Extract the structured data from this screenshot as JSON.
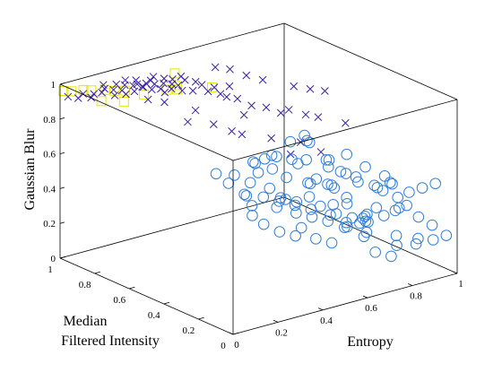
{
  "chart_data": {
    "type": "scatter",
    "projection": "3d",
    "grid": false,
    "legend": "none",
    "xlabel": "Entropy",
    "ylabel_lines": [
      "Median",
      "Filtered Intensity"
    ],
    "zlabel": "Gaussian Blur",
    "xlim": [
      0,
      1
    ],
    "ylim": [
      0,
      1
    ],
    "zlim": [
      0,
      1
    ],
    "x_ticks": [
      "0",
      "0.2",
      "0.4",
      "0.6",
      "0.8",
      "1"
    ],
    "y_ticks": [
      "0",
      "0.2",
      "0.4",
      "0.6",
      "0.8",
      "1"
    ],
    "z_ticks": [
      "0",
      "0.2",
      "0.4",
      "0.6",
      "0.8",
      "1"
    ],
    "series": [
      {
        "marker": "square",
        "color": "#e6e600",
        "points": [
          [
            0.0,
            0.98,
            0.97
          ],
          [
            0.02,
            0.96,
            0.97
          ],
          [
            0.05,
            0.93,
            0.98
          ],
          [
            0.07,
            0.91,
            0.98
          ],
          [
            0.1,
            0.87,
            0.99
          ],
          [
            0.12,
            0.84,
            0.99
          ],
          [
            0.15,
            0.82,
            0.99
          ],
          [
            0.03,
            0.8,
            0.98
          ],
          [
            0.26,
            0.72,
            1.0
          ],
          [
            0.29,
            0.7,
            1.0
          ],
          [
            0.4,
            0.64,
            1.0
          ],
          [
            0.45,
            0.92,
            0.94
          ],
          [
            0.42,
            0.88,
            0.9
          ],
          [
            0.22,
            0.8,
            0.95
          ],
          [
            0.1,
            0.76,
            0.97
          ]
        ]
      },
      {
        "marker": "x",
        "color": "#3b22a0",
        "points": [
          [
            0.02,
            0.98,
            0.93
          ],
          [
            0.05,
            0.96,
            0.92
          ],
          [
            0.08,
            0.97,
            0.93
          ],
          [
            0.1,
            0.95,
            0.91
          ],
          [
            0.12,
            0.96,
            0.92
          ],
          [
            0.14,
            0.94,
            0.93
          ],
          [
            0.16,
            0.95,
            0.94
          ],
          [
            0.17,
            0.97,
            0.95
          ],
          [
            0.19,
            0.93,
            0.9
          ],
          [
            0.2,
            0.95,
            0.92
          ],
          [
            0.22,
            0.96,
            0.94
          ],
          [
            0.23,
            0.94,
            0.91
          ],
          [
            0.24,
            0.93,
            0.89
          ],
          [
            0.25,
            0.95,
            0.93
          ],
          [
            0.26,
            0.96,
            0.95
          ],
          [
            0.27,
            0.92,
            0.9
          ],
          [
            0.28,
            0.94,
            0.92
          ],
          [
            0.29,
            0.93,
            0.93
          ],
          [
            0.3,
            0.95,
            0.94
          ],
          [
            0.31,
            0.92,
            0.91
          ],
          [
            0.32,
            0.94,
            0.9
          ],
          [
            0.33,
            0.93,
            0.92
          ],
          [
            0.34,
            0.91,
            0.89
          ],
          [
            0.35,
            0.93,
            0.93
          ],
          [
            0.36,
            0.92,
            0.91
          ],
          [
            0.37,
            0.94,
            0.94
          ],
          [
            0.38,
            0.91,
            0.88
          ],
          [
            0.39,
            0.9,
            0.86
          ],
          [
            0.4,
            0.92,
            0.9
          ],
          [
            0.41,
            0.93,
            0.92
          ],
          [
            0.42,
            0.9,
            0.87
          ],
          [
            0.43,
            0.91,
            0.89
          ],
          [
            0.44,
            0.92,
            0.91
          ],
          [
            0.45,
            0.9,
            0.88
          ],
          [
            0.46,
            0.89,
            0.85
          ],
          [
            0.47,
            0.91,
            0.92
          ],
          [
            0.48,
            0.9,
            0.9
          ],
          [
            0.5,
            0.88,
            0.84
          ],
          [
            0.52,
            0.89,
            0.88
          ],
          [
            0.54,
            0.88,
            0.86
          ],
          [
            0.56,
            0.87,
            0.82
          ],
          [
            0.58,
            0.86,
            0.84
          ],
          [
            0.6,
            0.85,
            0.8
          ],
          [
            0.62,
            0.84,
            0.78
          ],
          [
            0.64,
            0.85,
            0.83
          ],
          [
            0.66,
            0.83,
            0.76
          ],
          [
            0.7,
            0.8,
            0.72
          ],
          [
            0.75,
            0.78,
            0.7
          ],
          [
            0.8,
            0.76,
            0.66
          ],
          [
            0.82,
            0.74,
            0.68
          ],
          [
            0.88,
            0.72,
            0.64
          ],
          [
            0.92,
            0.7,
            0.62
          ],
          [
            0.6,
            0.88,
            0.94
          ],
          [
            0.65,
            0.86,
            0.92
          ],
          [
            0.7,
            0.83,
            0.88
          ],
          [
            0.75,
            0.8,
            0.85
          ],
          [
            0.85,
            0.75,
            0.8
          ],
          [
            0.9,
            0.72,
            0.78
          ],
          [
            0.95,
            0.7,
            0.76
          ],
          [
            0.78,
            0.62,
            0.56
          ],
          [
            0.68,
            0.66,
            0.6
          ],
          [
            0.55,
            0.72,
            0.66
          ],
          [
            0.5,
            0.76,
            0.7
          ],
          [
            0.45,
            0.8,
            0.78
          ],
          [
            0.35,
            0.85,
            0.84
          ],
          [
            0.3,
            0.88,
            0.86
          ],
          [
            0.72,
            0.6,
            0.52
          ],
          [
            0.84,
            0.58,
            0.5
          ],
          [
            0.98,
            0.62,
            0.6
          ],
          [
            0.4,
            0.78,
            0.74
          ],
          [
            0.58,
            0.7,
            0.64
          ],
          [
            0.62,
            0.74,
            0.72
          ]
        ]
      },
      {
        "marker": "circle",
        "color": "#2f7fd8",
        "points": [
          [
            0.55,
            0.3,
            0.82
          ],
          [
            0.6,
            0.35,
            0.75
          ],
          [
            0.65,
            0.4,
            0.7
          ],
          [
            0.7,
            0.25,
            0.68
          ],
          [
            0.52,
            0.45,
            0.65
          ],
          [
            0.58,
            0.5,
            0.6
          ],
          [
            0.62,
            0.38,
            0.62
          ],
          [
            0.68,
            0.33,
            0.58
          ],
          [
            0.72,
            0.28,
            0.55
          ],
          [
            0.75,
            0.35,
            0.52
          ],
          [
            0.78,
            0.3,
            0.5
          ],
          [
            0.8,
            0.22,
            0.48
          ],
          [
            0.74,
            0.42,
            0.56
          ],
          [
            0.66,
            0.48,
            0.54
          ],
          [
            0.6,
            0.55,
            0.5
          ],
          [
            0.56,
            0.58,
            0.48
          ],
          [
            0.64,
            0.52,
            0.45
          ],
          [
            0.7,
            0.46,
            0.42
          ],
          [
            0.76,
            0.4,
            0.4
          ],
          [
            0.82,
            0.34,
            0.44
          ],
          [
            0.86,
            0.28,
            0.42
          ],
          [
            0.88,
            0.22,
            0.46
          ],
          [
            0.84,
            0.18,
            0.5
          ],
          [
            0.9,
            0.3,
            0.38
          ],
          [
            0.92,
            0.24,
            0.36
          ],
          [
            0.94,
            0.2,
            0.4
          ],
          [
            0.96,
            0.15,
            0.44
          ],
          [
            0.98,
            0.1,
            0.48
          ],
          [
            0.72,
            0.2,
            0.3
          ],
          [
            0.78,
            0.26,
            0.28
          ],
          [
            0.82,
            0.3,
            0.26
          ],
          [
            0.86,
            0.34,
            0.24
          ],
          [
            0.74,
            0.38,
            0.32
          ],
          [
            0.68,
            0.44,
            0.36
          ],
          [
            0.62,
            0.5,
            0.34
          ],
          [
            0.58,
            0.54,
            0.4
          ],
          [
            0.54,
            0.6,
            0.42
          ],
          [
            0.5,
            0.64,
            0.46
          ],
          [
            0.66,
            0.58,
            0.3
          ],
          [
            0.7,
            0.54,
            0.28
          ],
          [
            0.76,
            0.48,
            0.26
          ],
          [
            0.8,
            0.44,
            0.22
          ],
          [
            0.84,
            0.4,
            0.2
          ],
          [
            0.88,
            0.36,
            0.18
          ],
          [
            0.92,
            0.32,
            0.22
          ],
          [
            0.94,
            0.28,
            0.26
          ],
          [
            0.96,
            0.24,
            0.3
          ],
          [
            0.9,
            0.4,
            0.16
          ],
          [
            0.86,
            0.46,
            0.14
          ],
          [
            0.82,
            0.5,
            0.18
          ],
          [
            0.78,
            0.56,
            0.2
          ],
          [
            0.74,
            0.6,
            0.22
          ],
          [
            0.7,
            0.64,
            0.24
          ],
          [
            0.66,
            0.68,
            0.26
          ],
          [
            0.98,
            0.2,
            0.12
          ],
          [
            0.96,
            0.3,
            0.1
          ],
          [
            0.92,
            0.42,
            0.08
          ],
          [
            0.88,
            0.48,
            0.1
          ],
          [
            0.84,
            0.54,
            0.12
          ],
          [
            0.8,
            0.58,
            0.14
          ],
          [
            0.76,
            0.62,
            0.16
          ],
          [
            0.72,
            0.68,
            0.18
          ],
          [
            0.64,
            0.72,
            0.2
          ],
          [
            0.6,
            0.7,
            0.28
          ],
          [
            0.56,
            0.66,
            0.32
          ],
          [
            0.52,
            0.7,
            0.38
          ],
          [
            0.48,
            0.72,
            0.44
          ],
          [
            0.62,
            0.62,
            0.52
          ],
          [
            0.58,
            0.42,
            0.72
          ],
          [
            0.5,
            0.52,
            0.58
          ],
          [
            0.54,
            0.36,
            0.66
          ],
          [
            0.66,
            0.3,
            0.64
          ],
          [
            0.7,
            0.36,
            0.46
          ],
          [
            0.74,
            0.3,
            0.36
          ],
          [
            0.8,
            0.38,
            0.34
          ],
          [
            0.84,
            0.26,
            0.32
          ],
          [
            0.88,
            0.18,
            0.34
          ],
          [
            0.92,
            0.12,
            0.3
          ],
          [
            0.95,
            0.08,
            0.26
          ],
          [
            0.99,
            0.05,
            0.2
          ],
          [
            0.97,
            0.1,
            0.16
          ],
          [
            0.94,
            0.16,
            0.12
          ],
          [
            0.9,
            0.22,
            0.1
          ],
          [
            0.86,
            0.2,
            0.06
          ],
          [
            0.82,
            0.24,
            0.08
          ],
          [
            0.78,
            0.44,
            0.06
          ],
          [
            0.74,
            0.48,
            0.08
          ],
          [
            0.68,
            0.52,
            0.1
          ],
          [
            0.64,
            0.56,
            0.12
          ],
          [
            0.6,
            0.6,
            0.16
          ],
          [
            0.58,
            0.64,
            0.2
          ],
          [
            0.76,
            0.22,
            0.6
          ],
          [
            0.8,
            0.16,
            0.56
          ],
          [
            0.64,
            0.26,
            0.52
          ],
          [
            0.46,
            0.48,
            0.62
          ],
          [
            0.68,
            0.4,
            0.48
          ],
          [
            0.72,
            0.5,
            0.4
          ],
          [
            0.76,
            0.34,
            0.2
          ],
          [
            0.8,
            0.28,
            0.16
          ],
          [
            0.66,
            0.46,
            0.18
          ]
        ]
      }
    ]
  }
}
